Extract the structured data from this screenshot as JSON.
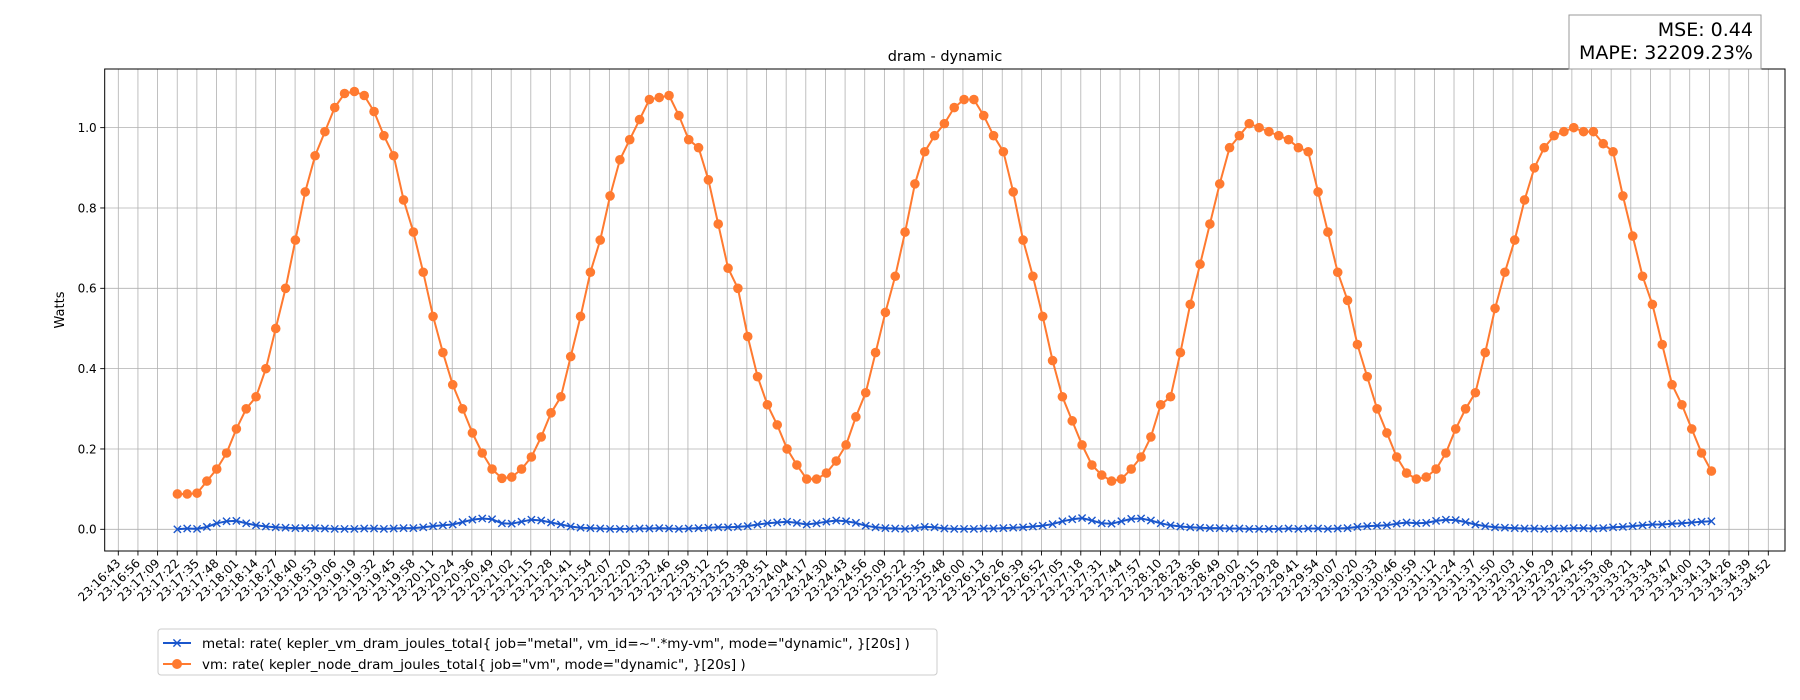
{
  "chart_data": {
    "type": "line",
    "title": "dram - dynamic",
    "xlabel": "",
    "ylabel": "Watts",
    "ylim": [
      -0.054,
      1.146
    ],
    "yticks": [
      0.0,
      0.2,
      0.4,
      0.6,
      0.8,
      1.0
    ],
    "ytick_labels": [
      "0.0",
      "0.2",
      "0.4",
      "0.6",
      "0.8",
      "1.0"
    ],
    "grid": true,
    "legend_position": "bottom-left, below axes",
    "x_tick_labels": [
      "23:16:43",
      "23:16:56",
      "23:17:09",
      "23:17:22",
      "23:17:35",
      "23:17:48",
      "23:18:01",
      "23:18:14",
      "23:18:27",
      "23:18:40",
      "23:18:53",
      "23:19:06",
      "23:19:19",
      "23:19:32",
      "23:19:45",
      "23:19:58",
      "23:20:11",
      "23:20:24",
      "23:20:36",
      "23:20:49",
      "23:21:02",
      "23:21:15",
      "23:21:28",
      "23:21:41",
      "23:21:54",
      "23:22:07",
      "23:22:20",
      "23:22:33",
      "23:22:46",
      "23:22:59",
      "23:23:12",
      "23:23:25",
      "23:23:38",
      "23:23:51",
      "23:24:04",
      "23:24:17",
      "23:24:30",
      "23:24:43",
      "23:24:56",
      "23:25:09",
      "23:25:22",
      "23:25:35",
      "23:25:48",
      "23:26:00",
      "23:26:13",
      "23:26:26",
      "23:26:39",
      "23:26:52",
      "23:27:05",
      "23:27:18",
      "23:27:31",
      "23:27:44",
      "23:27:57",
      "23:28:10",
      "23:28:23",
      "23:28:36",
      "23:28:49",
      "23:29:02",
      "23:29:15",
      "23:29:28",
      "23:29:41",
      "23:29:54",
      "23:30:07",
      "23:30:20",
      "23:30:33",
      "23:30:46",
      "23:30:59",
      "23:31:12",
      "23:31:24",
      "23:31:37",
      "23:31:50",
      "23:32:03",
      "23:32:16",
      "23:32:29",
      "23:32:42",
      "23:32:55",
      "23:33:08",
      "23:33:21",
      "23:33:34",
      "23:33:47",
      "23:34:00",
      "23:34:13",
      "23:34:26",
      "23:34:39",
      "23:34:52"
    ],
    "x_start": "23:17:22",
    "x_step_seconds": 6.49,
    "series": [
      {
        "name": "metal: rate( kepler_vm_dram_joules_total{ job=\"metal\", vm_id=~\".*my-vm\", mode=\"dynamic\", }[20s] )",
        "marker": "x",
        "color": "#1a56cc",
        "values": [
          0.0,
          0.002,
          0.001,
          0.006,
          0.015,
          0.02,
          0.021,
          0.015,
          0.01,
          0.007,
          0.005,
          0.004,
          0.003,
          0.003,
          0.003,
          0.002,
          0.001,
          0.001,
          0.001,
          0.002,
          0.002,
          0.001,
          0.002,
          0.003,
          0.003,
          0.005,
          0.008,
          0.01,
          0.012,
          0.018,
          0.024,
          0.027,
          0.025,
          0.015,
          0.014,
          0.019,
          0.024,
          0.022,
          0.017,
          0.012,
          0.007,
          0.004,
          0.003,
          0.002,
          0.001,
          0.001,
          0.001,
          0.002,
          0.002,
          0.003,
          0.002,
          0.001,
          0.002,
          0.003,
          0.004,
          0.005,
          0.005,
          0.006,
          0.008,
          0.012,
          0.015,
          0.017,
          0.019,
          0.016,
          0.012,
          0.015,
          0.019,
          0.022,
          0.02,
          0.016,
          0.009,
          0.005,
          0.003,
          0.002,
          0.001,
          0.003,
          0.006,
          0.005,
          0.002,
          0.001,
          0.001,
          0.001,
          0.002,
          0.002,
          0.003,
          0.004,
          0.005,
          0.007,
          0.009,
          0.013,
          0.02,
          0.025,
          0.028,
          0.022,
          0.015,
          0.014,
          0.02,
          0.026,
          0.027,
          0.022,
          0.015,
          0.01,
          0.007,
          0.005,
          0.004,
          0.003,
          0.003,
          0.002,
          0.002,
          0.001,
          0.001,
          0.001,
          0.001,
          0.002,
          0.001,
          0.002,
          0.002,
          0.001,
          0.002,
          0.003,
          0.006,
          0.008,
          0.009,
          0.01,
          0.014,
          0.017,
          0.015,
          0.016,
          0.021,
          0.024,
          0.023,
          0.018,
          0.012,
          0.008,
          0.005,
          0.004,
          0.003,
          0.002,
          0.002,
          0.001,
          0.002,
          0.002,
          0.003,
          0.003,
          0.002,
          0.003,
          0.005,
          0.006,
          0.008,
          0.01,
          0.012,
          0.012,
          0.014,
          0.015,
          0.017,
          0.019,
          0.02
        ]
      },
      {
        "name": "vm: rate( kepler_node_dram_joules_total{ job=\"vm\", mode=\"dynamic\", }[20s] )",
        "marker": "o",
        "color": "#ff7a30",
        "values": [
          0.088,
          0.088,
          0.09,
          0.12,
          0.15,
          0.19,
          0.25,
          0.3,
          0.33,
          0.4,
          0.5,
          0.6,
          0.72,
          0.84,
          0.93,
          0.99,
          1.05,
          1.085,
          1.09,
          1.08,
          1.04,
          0.98,
          0.93,
          0.82,
          0.74,
          0.64,
          0.53,
          0.44,
          0.36,
          0.3,
          0.24,
          0.19,
          0.15,
          0.127,
          0.13,
          0.15,
          0.18,
          0.23,
          0.29,
          0.33,
          0.43,
          0.53,
          0.64,
          0.72,
          0.83,
          0.92,
          0.97,
          1.02,
          1.07,
          1.075,
          1.08,
          1.03,
          0.97,
          0.95,
          0.87,
          0.76,
          0.65,
          0.6,
          0.48,
          0.38,
          0.31,
          0.26,
          0.2,
          0.16,
          0.125,
          0.125,
          0.14,
          0.17,
          0.21,
          0.28,
          0.34,
          0.44,
          0.54,
          0.63,
          0.74,
          0.86,
          0.94,
          0.98,
          1.01,
          1.05,
          1.07,
          1.07,
          1.03,
          0.98,
          0.94,
          0.84,
          0.72,
          0.63,
          0.53,
          0.42,
          0.33,
          0.27,
          0.21,
          0.16,
          0.135,
          0.12,
          0.125,
          0.15,
          0.18,
          0.23,
          0.31,
          0.33,
          0.44,
          0.56,
          0.66,
          0.76,
          0.86,
          0.95,
          0.98,
          1.01,
          1.0,
          0.99,
          0.98,
          0.97,
          0.95,
          0.94,
          0.84,
          0.74,
          0.64,
          0.57,
          0.46,
          0.38,
          0.3,
          0.24,
          0.18,
          0.14,
          0.125,
          0.13,
          0.15,
          0.19,
          0.25,
          0.3,
          0.34,
          0.44,
          0.55,
          0.64,
          0.72,
          0.82,
          0.9,
          0.95,
          0.98,
          0.99,
          1.0,
          0.99,
          0.99,
          0.96,
          0.94,
          0.83,
          0.73,
          0.63,
          0.56,
          0.46,
          0.36,
          0.31,
          0.25,
          0.19,
          0.145
        ]
      }
    ],
    "annotation": {
      "mse": "MSE: 0.44",
      "mape": "MAPE: 32209.23%"
    }
  }
}
